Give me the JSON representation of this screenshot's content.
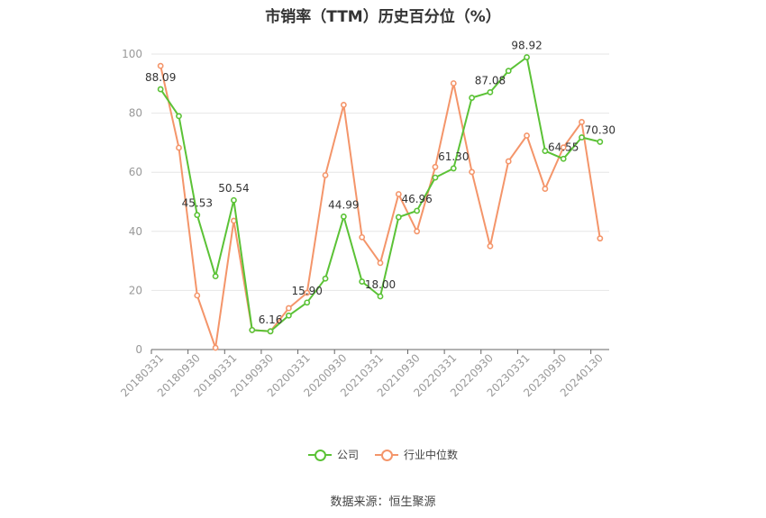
{
  "title": "市销率（TTM）历史百分位（%）",
  "source": "数据来源：恒生聚源",
  "colors": {
    "company": "#5bc236",
    "industry": "#f4956a",
    "grid": "#e6e6e6",
    "axis": "#666666",
    "tick": "#999999"
  },
  "legend": {
    "company": "公司",
    "industry": "行业中位数"
  },
  "chart_data": {
    "type": "line",
    "title": "市销率（TTM）历史百分位（%）",
    "ylim": [
      0,
      100
    ],
    "yticks": [
      0,
      20,
      40,
      60,
      80,
      100
    ],
    "grid": true,
    "legend_position": "bottom",
    "x_tick_labels": [
      "20180331",
      "20180930",
      "20190331",
      "20190930",
      "20200331",
      "20200930",
      "20210331",
      "20210930",
      "20220331",
      "20220930",
      "20230331",
      "20230930",
      "20240130"
    ],
    "x": [
      "20180331",
      "20180630",
      "20180930",
      "20181231",
      "20190331",
      "20190630",
      "20190930",
      "20191231",
      "20200331",
      "20200630",
      "20200930",
      "20201231",
      "20210331",
      "20210630",
      "20210930",
      "20211231",
      "20220331",
      "20220630",
      "20220930",
      "20221231",
      "20230331",
      "20230630",
      "20230930",
      "20231231",
      "20240130"
    ],
    "series": [
      {
        "name": "公司",
        "color": "#5bc236",
        "values": [
          88.09,
          79.0,
          45.53,
          24.8,
          50.54,
          6.6,
          6.16,
          11.5,
          15.9,
          24.0,
          44.99,
          23.0,
          18.0,
          44.8,
          46.96,
          58.2,
          61.3,
          85.2,
          87.08,
          94.3,
          98.92,
          67.2,
          64.55,
          71.8,
          70.3
        ],
        "labels": {
          "0": "88.09",
          "2": "45.53",
          "4": "50.54",
          "6": "6.16",
          "8": "15.90",
          "10": "44.99",
          "12": "18.00",
          "14": "46.96",
          "16": "61.30",
          "18": "87.08",
          "20": "98.92",
          "22": "64.55",
          "24": "70.30"
        }
      },
      {
        "name": "行业中位数",
        "color": "#f4956a",
        "values": [
          96.0,
          68.3,
          18.3,
          0.6,
          43.6,
          6.6,
          6.2,
          14.0,
          19.2,
          59.0,
          82.8,
          38.0,
          29.3,
          52.6,
          40.0,
          61.8,
          90.1,
          60.1,
          35.0,
          63.7,
          72.4,
          54.4,
          68.4,
          77.0,
          37.6
        ]
      }
    ]
  }
}
